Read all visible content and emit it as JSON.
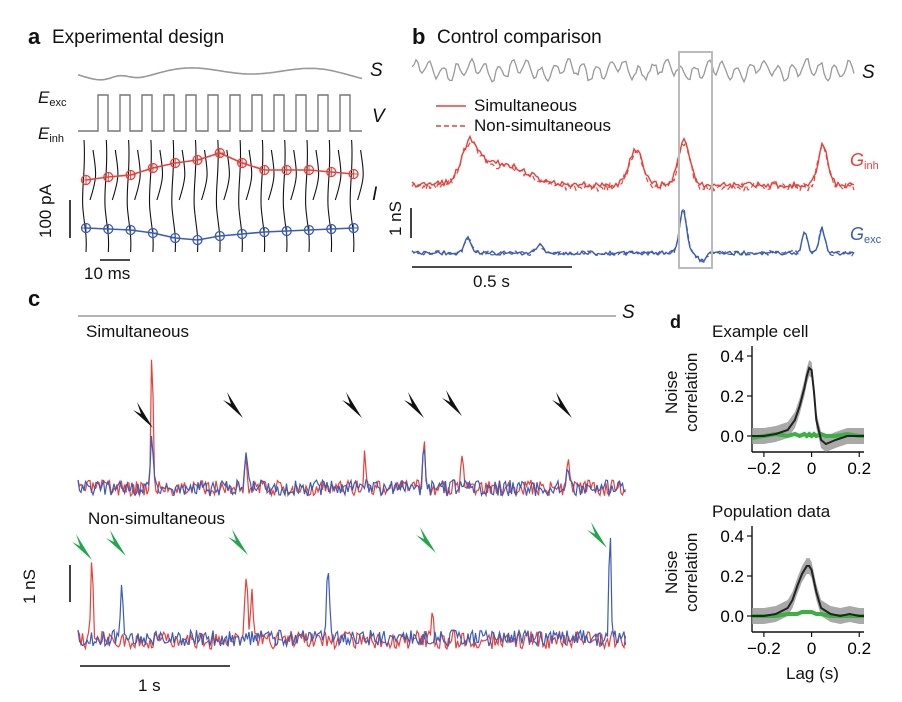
{
  "figure": {
    "panel_a": {
      "letter": "a",
      "title": "Experimental design",
      "label_S": "S",
      "label_V": "V",
      "label_I": "I",
      "label_Eexc_main": "E",
      "label_Eexc_sub": "exc",
      "label_Einh_main": "E",
      "label_Einh_sub": "inh",
      "scale_y": "100 pA",
      "scale_x": "10 ms",
      "colors": {
        "inh": "#e8403a",
        "exc": "#3b5bb5",
        "trace": "#111111",
        "stim": "#999999"
      }
    },
    "panel_b": {
      "letter": "b",
      "title": "Control comparison",
      "label_S": "S",
      "legend_simultaneous": "Simultaneous",
      "legend_nonsimultaneous": "Non-simultaneous",
      "label_Ginh_main": "G",
      "label_Ginh_sub": "inh",
      "label_Gexc_main": "G",
      "label_Gexc_sub": "exc",
      "scale_y": "1 nS",
      "scale_x": "0.5 s"
    },
    "panel_c": {
      "letter": "c",
      "label_S": "S",
      "label_simultaneous": "Simultaneous",
      "label_nonsimultaneous": "Non-simultaneous",
      "scale_y": "1 nS",
      "scale_x": "1 s"
    },
    "panel_d": {
      "letter": "d",
      "ylabel_line1": "Noise",
      "ylabel_line2": "correlation",
      "xlabel": "Lag (s)",
      "colors": {
        "data": "#222222",
        "shuffle": "#3cb043",
        "band": "#9a9a9a"
      }
    }
  },
  "chart_data": [
    {
      "type": "line",
      "title": "Example cell",
      "xlabel": "",
      "ylabel": "Noise correlation",
      "xlim": [
        -0.25,
        0.22
      ],
      "ylim": [
        -0.08,
        0.45
      ],
      "xticks": [
        -0.2,
        0,
        0.2
      ],
      "xtick_labels": [
        "−0.2",
        "0",
        "0.2"
      ],
      "yticks": [
        0,
        0.2,
        0.4
      ],
      "ytick_labels": [
        "0.0",
        "0.2",
        "0.4"
      ],
      "x": [
        -0.25,
        -0.2,
        -0.15,
        -0.1,
        -0.07,
        -0.05,
        -0.03,
        -0.02,
        -0.01,
        0.0,
        0.01,
        0.02,
        0.04,
        0.06,
        0.1,
        0.15,
        0.2,
        0.22
      ],
      "series": [
        {
          "values": [
            0.0,
            0.0,
            0.01,
            0.03,
            0.08,
            0.15,
            0.24,
            0.3,
            0.34,
            0.33,
            0.22,
            0.08,
            -0.02,
            -0.04,
            -0.02,
            0.0,
            0.0,
            0.0
          ]
        },
        {
          "values": [
            -0.01,
            0.0,
            0.01,
            0.0,
            0.01,
            0.0,
            0.01,
            0.0,
            0.01,
            0.0,
            0.01,
            0.0,
            0.01,
            0.0,
            0.0,
            0.01,
            0.0,
            0.0
          ]
        }
      ]
    },
    {
      "type": "line",
      "title": "Population data",
      "xlabel": "Lag (s)",
      "ylabel": "Noise correlation",
      "xlim": [
        -0.25,
        0.22
      ],
      "ylim": [
        -0.08,
        0.45
      ],
      "xticks": [
        -0.2,
        0,
        0.2
      ],
      "xtick_labels": [
        "−0.2",
        "0",
        "0.2"
      ],
      "yticks": [
        0,
        0.2,
        0.4
      ],
      "ytick_labels": [
        "0.0",
        "0.2",
        "0.4"
      ],
      "x": [
        -0.25,
        -0.2,
        -0.15,
        -0.1,
        -0.08,
        -0.06,
        -0.04,
        -0.02,
        -0.01,
        0.0,
        0.02,
        0.04,
        0.08,
        0.12,
        0.16,
        0.2,
        0.22
      ],
      "series": [
        {
          "values": [
            0.0,
            0.0,
            0.01,
            0.04,
            0.08,
            0.15,
            0.21,
            0.25,
            0.25,
            0.23,
            0.12,
            0.04,
            0.01,
            0.0,
            0.01,
            0.0,
            0.0
          ]
        },
        {
          "values": [
            0.0,
            0.0,
            0.0,
            0.01,
            0.01,
            0.01,
            0.02,
            0.02,
            0.02,
            0.02,
            0.01,
            0.01,
            0.0,
            0.0,
            0.0,
            0.0,
            0.0
          ]
        }
      ]
    }
  ]
}
